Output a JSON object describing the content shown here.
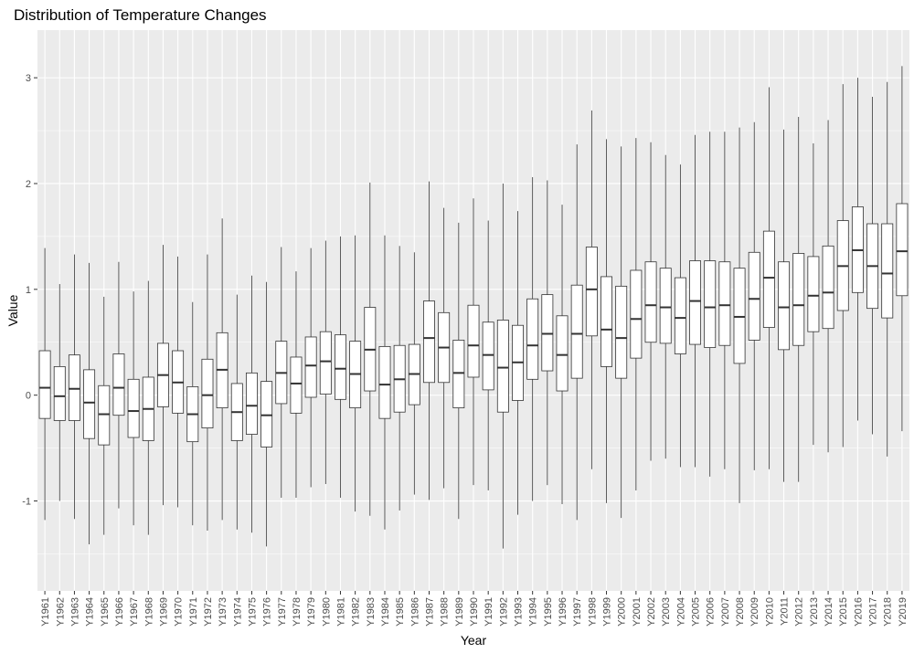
{
  "chart_data": {
    "type": "boxplot",
    "title": "Distribution of Temperature Changes",
    "xlabel": "Year",
    "ylabel": "Value",
    "ylim": [
      -1.85,
      3.45
    ],
    "yticks": [
      -1,
      0,
      1,
      2,
      3
    ],
    "grid": true,
    "legend": "none",
    "colors": {
      "panel": "#ebebeb",
      "grid": "#ffffff",
      "box_fill": "#ffffff",
      "stroke": "#333333"
    },
    "categories": [
      "Y1961",
      "Y1962",
      "Y1963",
      "Y1964",
      "Y1965",
      "Y1966",
      "Y1967",
      "Y1968",
      "Y1969",
      "Y1970",
      "Y1971",
      "Y1972",
      "Y1973",
      "Y1974",
      "Y1975",
      "Y1976",
      "Y1977",
      "Y1978",
      "Y1979",
      "Y1980",
      "Y1981",
      "Y1982",
      "Y1983",
      "Y1984",
      "Y1985",
      "Y1986",
      "Y1987",
      "Y1988",
      "Y1989",
      "Y1990",
      "Y1991",
      "Y1992",
      "Y1993",
      "Y1994",
      "Y1995",
      "Y1996",
      "Y1997",
      "Y1998",
      "Y1999",
      "Y2000",
      "Y2001",
      "Y2002",
      "Y2003",
      "Y2004",
      "Y2005",
      "Y2006",
      "Y2007",
      "Y2008",
      "Y2009",
      "Y2010",
      "Y2011",
      "Y2012",
      "Y2013",
      "Y2014",
      "Y2015",
      "Y2016",
      "Y2017",
      "Y2018",
      "Y2019"
    ],
    "boxes": [
      {
        "min": -1.18,
        "q1": -0.22,
        "median": 0.07,
        "q3": 0.42,
        "max": 1.39
      },
      {
        "min": -1.0,
        "q1": -0.24,
        "median": -0.01,
        "q3": 0.27,
        "max": 1.05
      },
      {
        "min": -1.17,
        "q1": -0.24,
        "median": 0.06,
        "q3": 0.38,
        "max": 1.33
      },
      {
        "min": -1.41,
        "q1": -0.41,
        "median": -0.07,
        "q3": 0.24,
        "max": 1.25
      },
      {
        "min": -1.32,
        "q1": -0.47,
        "median": -0.18,
        "q3": 0.09,
        "max": 0.93
      },
      {
        "min": -1.07,
        "q1": -0.19,
        "median": 0.07,
        "q3": 0.39,
        "max": 1.26
      },
      {
        "min": -1.23,
        "q1": -0.4,
        "median": -0.15,
        "q3": 0.15,
        "max": 0.98
      },
      {
        "min": -1.32,
        "q1": -0.43,
        "median": -0.13,
        "q3": 0.17,
        "max": 1.08
      },
      {
        "min": -1.04,
        "q1": -0.11,
        "median": 0.19,
        "q3": 0.49,
        "max": 1.42
      },
      {
        "min": -1.06,
        "q1": -0.17,
        "median": 0.12,
        "q3": 0.42,
        "max": 1.31
      },
      {
        "min": -1.23,
        "q1": -0.44,
        "median": -0.18,
        "q3": 0.08,
        "max": 0.88
      },
      {
        "min": -1.28,
        "q1": -0.31,
        "median": 0.0,
        "q3": 0.34,
        "max": 1.33
      },
      {
        "min": -1.18,
        "q1": -0.12,
        "median": 0.24,
        "q3": 0.59,
        "max": 1.67
      },
      {
        "min": -1.27,
        "q1": -0.43,
        "median": -0.16,
        "q3": 0.11,
        "max": 0.95
      },
      {
        "min": -1.3,
        "q1": -0.37,
        "median": -0.1,
        "q3": 0.21,
        "max": 1.13
      },
      {
        "min": -1.43,
        "q1": -0.49,
        "median": -0.19,
        "q3": 0.13,
        "max": 1.07
      },
      {
        "min": -0.97,
        "q1": -0.08,
        "median": 0.21,
        "q3": 0.51,
        "max": 1.4
      },
      {
        "min": -0.97,
        "q1": -0.17,
        "median": 0.11,
        "q3": 0.36,
        "max": 1.17
      },
      {
        "min": -0.87,
        "q1": -0.02,
        "median": 0.28,
        "q3": 0.55,
        "max": 1.39
      },
      {
        "min": -0.84,
        "q1": 0.01,
        "median": 0.32,
        "q3": 0.6,
        "max": 1.46
      },
      {
        "min": -0.97,
        "q1": -0.04,
        "median": 0.25,
        "q3": 0.57,
        "max": 1.5
      },
      {
        "min": -1.1,
        "q1": -0.12,
        "median": 0.2,
        "q3": 0.51,
        "max": 1.51
      },
      {
        "min": -1.14,
        "q1": 0.04,
        "median": 0.43,
        "q3": 0.83,
        "max": 2.01
      },
      {
        "min": -1.27,
        "q1": -0.22,
        "median": 0.1,
        "q3": 0.46,
        "max": 1.51
      },
      {
        "min": -1.09,
        "q1": -0.16,
        "median": 0.15,
        "q3": 0.47,
        "max": 1.41
      },
      {
        "min": -0.94,
        "q1": -0.09,
        "median": 0.2,
        "q3": 0.48,
        "max": 1.35
      },
      {
        "min": -0.99,
        "q1": 0.12,
        "median": 0.54,
        "q3": 0.89,
        "max": 2.02
      },
      {
        "min": -0.88,
        "q1": 0.12,
        "median": 0.45,
        "q3": 0.78,
        "max": 1.77
      },
      {
        "min": -1.17,
        "q1": -0.12,
        "median": 0.21,
        "q3": 0.52,
        "max": 1.63
      },
      {
        "min": -0.85,
        "q1": 0.17,
        "median": 0.47,
        "q3": 0.85,
        "max": 1.86
      },
      {
        "min": -0.9,
        "q1": 0.05,
        "median": 0.38,
        "q3": 0.69,
        "max": 1.65
      },
      {
        "min": -1.45,
        "q1": -0.16,
        "median": 0.26,
        "q3": 0.71,
        "max": 2.0
      },
      {
        "min": -1.13,
        "q1": -0.05,
        "median": 0.31,
        "q3": 0.66,
        "max": 1.74
      },
      {
        "min": -1.0,
        "q1": 0.15,
        "median": 0.47,
        "q3": 0.91,
        "max": 2.06
      },
      {
        "min": -0.85,
        "q1": 0.23,
        "median": 0.58,
        "q3": 0.95,
        "max": 2.03
      },
      {
        "min": -1.03,
        "q1": 0.04,
        "median": 0.38,
        "q3": 0.75,
        "max": 1.8
      },
      {
        "min": -1.18,
        "q1": 0.16,
        "median": 0.58,
        "q3": 1.04,
        "max": 2.37
      },
      {
        "min": -0.7,
        "q1": 0.56,
        "median": 1.0,
        "q3": 1.4,
        "max": 2.69
      },
      {
        "min": -1.02,
        "q1": 0.27,
        "median": 0.62,
        "q3": 1.12,
        "max": 2.42
      },
      {
        "min": -1.16,
        "q1": 0.16,
        "median": 0.54,
        "q3": 1.03,
        "max": 2.35
      },
      {
        "min": -0.9,
        "q1": 0.35,
        "median": 0.72,
        "q3": 1.18,
        "max": 2.43
      },
      {
        "min": -0.62,
        "q1": 0.5,
        "median": 0.85,
        "q3": 1.26,
        "max": 2.39
      },
      {
        "min": -0.6,
        "q1": 0.49,
        "median": 0.83,
        "q3": 1.2,
        "max": 2.27
      },
      {
        "min": -0.68,
        "q1": 0.39,
        "median": 0.73,
        "q3": 1.11,
        "max": 2.18
      },
      {
        "min": -0.68,
        "q1": 0.48,
        "median": 0.89,
        "q3": 1.27,
        "max": 2.46
      },
      {
        "min": -0.77,
        "q1": 0.45,
        "median": 0.83,
        "q3": 1.27,
        "max": 2.49
      },
      {
        "min": -0.7,
        "q1": 0.47,
        "median": 0.85,
        "q3": 1.26,
        "max": 2.49
      },
      {
        "min": -1.02,
        "q1": 0.3,
        "median": 0.74,
        "q3": 1.2,
        "max": 2.53
      },
      {
        "min": -0.71,
        "q1": 0.52,
        "median": 0.91,
        "q3": 1.35,
        "max": 2.58
      },
      {
        "min": -0.7,
        "q1": 0.64,
        "median": 1.11,
        "q3": 1.55,
        "max": 2.91
      },
      {
        "min": -0.82,
        "q1": 0.43,
        "median": 0.83,
        "q3": 1.26,
        "max": 2.51
      },
      {
        "min": -0.82,
        "q1": 0.47,
        "median": 0.85,
        "q3": 1.34,
        "max": 2.63
      },
      {
        "min": -0.47,
        "q1": 0.6,
        "median": 0.94,
        "q3": 1.31,
        "max": 2.38
      },
      {
        "min": -0.54,
        "q1": 0.63,
        "median": 0.97,
        "q3": 1.41,
        "max": 2.6
      },
      {
        "min": -0.49,
        "q1": 0.8,
        "median": 1.22,
        "q3": 1.65,
        "max": 2.94
      },
      {
        "min": -0.24,
        "q1": 0.97,
        "median": 1.37,
        "q3": 1.78,
        "max": 3.0
      },
      {
        "min": -0.37,
        "q1": 0.82,
        "median": 1.22,
        "q3": 1.62,
        "max": 2.82
      },
      {
        "min": -0.58,
        "q1": 0.73,
        "median": 1.15,
        "q3": 1.62,
        "max": 2.96
      },
      {
        "min": -0.34,
        "q1": 0.94,
        "median": 1.36,
        "q3": 1.81,
        "max": 3.11
      }
    ]
  }
}
